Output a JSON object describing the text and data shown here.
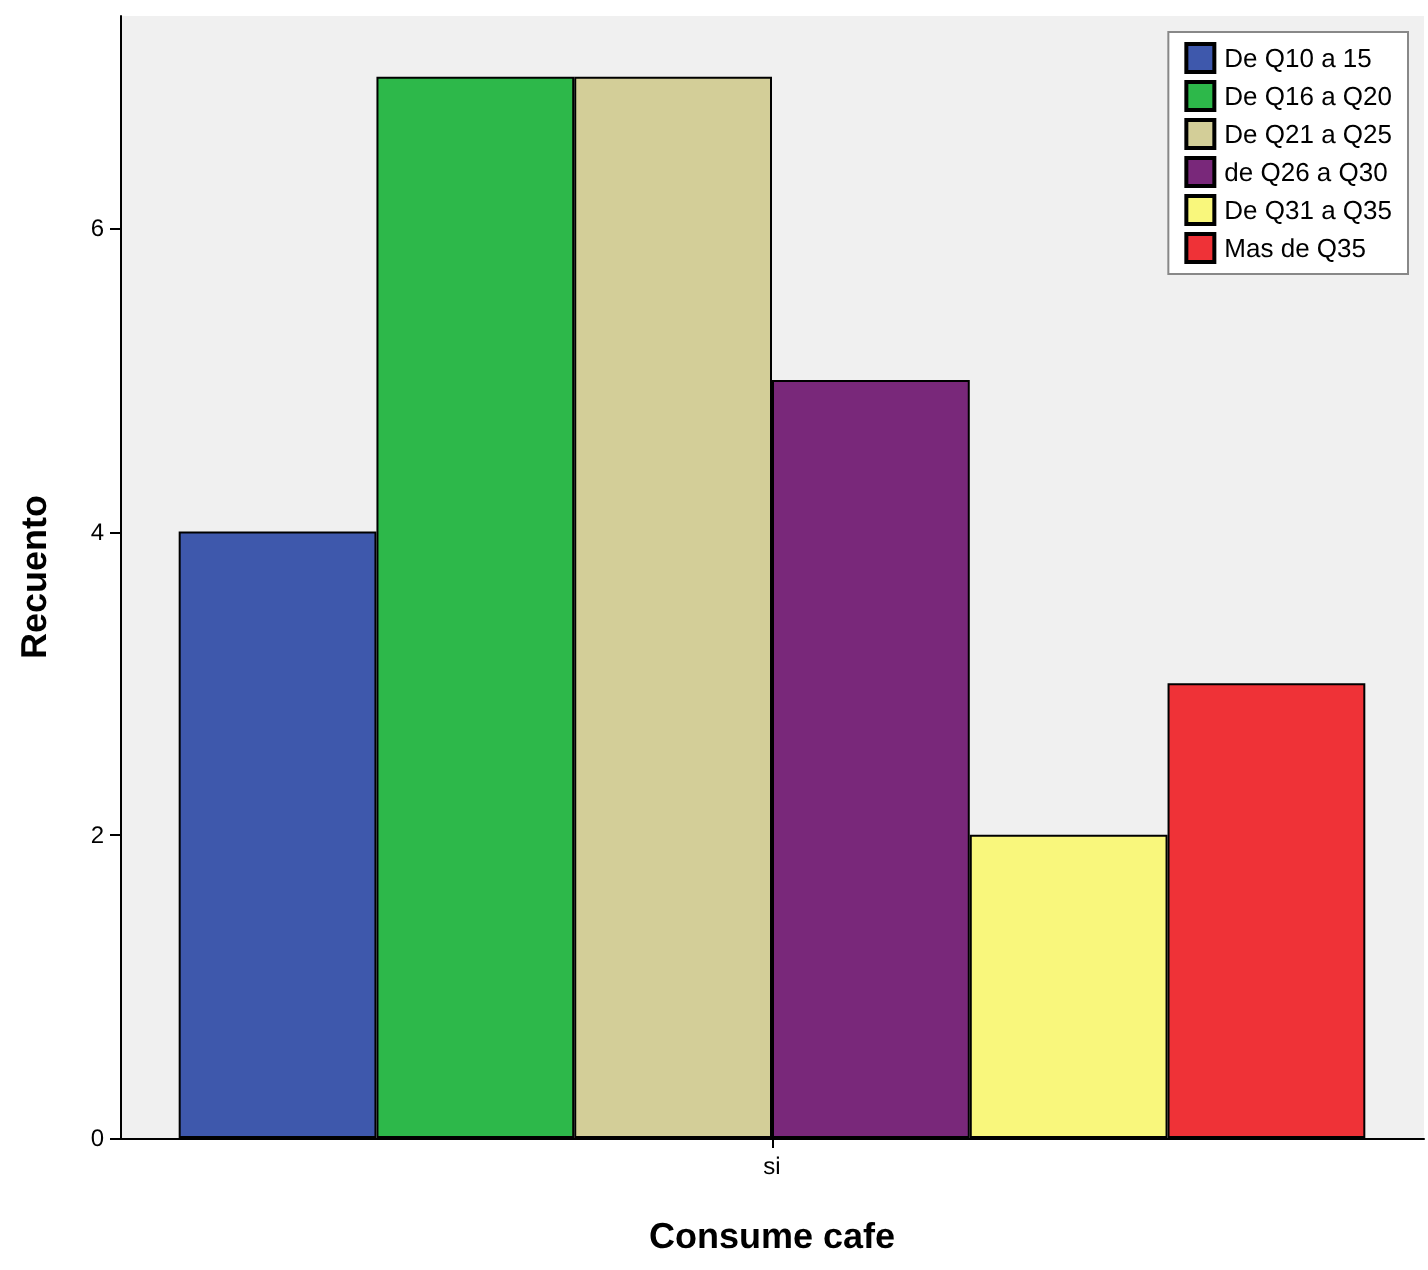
{
  "chart_data": {
    "type": "bar",
    "xlabel": "Consume cafe",
    "ylabel": "Recuento",
    "categories": [
      "si"
    ],
    "series": [
      {
        "name": "De Q10 a 15",
        "color": "#3e58ac",
        "values": [
          4
        ]
      },
      {
        "name": "De Q16 a Q20",
        "color": "#2db84a",
        "values": [
          7
        ]
      },
      {
        "name": "De Q21 a Q25",
        "color": "#d3ce98",
        "values": [
          7
        ]
      },
      {
        "name": "de Q26 a Q30",
        "color": "#79287a",
        "values": [
          5
        ]
      },
      {
        "name": "De Q31 a Q35",
        "color": "#f9f77c",
        "values": [
          2
        ]
      },
      {
        "name": "Mas de Q35",
        "color": "#ef3237",
        "values": [
          3
        ]
      }
    ],
    "ylim": [
      0,
      7.4
    ],
    "yticks": [
      0,
      2,
      4,
      6
    ],
    "grid": false,
    "legend": "top right"
  }
}
